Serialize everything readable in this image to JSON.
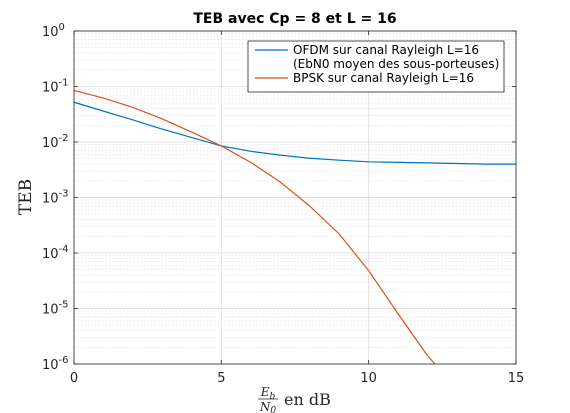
{
  "chart_data": {
    "type": "line",
    "title": "TEB avec Cp = 8 et L = 16",
    "ylabel": "TEB",
    "xlabel": {
      "numerator": "E",
      "numerator_sub": "b",
      "denominator": "N",
      "denominator_sub": "0",
      "suffix": "en dB"
    },
    "xlim": [
      0,
      15
    ],
    "ylim": [
      1e-06,
      1
    ],
    "yscale": "log",
    "x_ticks": [
      0,
      5,
      10,
      15
    ],
    "y_ticks": [
      {
        "value": 1,
        "base": "10",
        "exp": "0"
      },
      {
        "value": 0.1,
        "base": "10",
        "exp": "-1"
      },
      {
        "value": 0.01,
        "base": "10",
        "exp": "-2"
      },
      {
        "value": 0.001,
        "base": "10",
        "exp": "-3"
      },
      {
        "value": 0.0001,
        "base": "10",
        "exp": "-4"
      },
      {
        "value": 1e-05,
        "base": "10",
        "exp": "-5"
      },
      {
        "value": 1e-06,
        "base": "10",
        "exp": "-6"
      }
    ],
    "grid": true,
    "minor_grid": true,
    "legend_position": "top-right",
    "series": [
      {
        "name_lines": [
          "OFDM sur canal Rayleigh L=16",
          "(EbN0 moyen des sous-porteuses)"
        ],
        "color": "#0072BD",
        "x": [
          0,
          1,
          2,
          3,
          4,
          5,
          6,
          7,
          8,
          9,
          10,
          11,
          12,
          13,
          14,
          15
        ],
        "y": [
          0.052,
          0.036,
          0.025,
          0.017,
          0.012,
          0.0085,
          0.0068,
          0.0058,
          0.0051,
          0.0047,
          0.0044,
          0.0043,
          0.0042,
          0.0041,
          0.004,
          0.004
        ]
      },
      {
        "name_lines": [
          "BPSK sur canal Rayleigh L=16"
        ],
        "color": "#D95319",
        "x": [
          0,
          1,
          2,
          3,
          4,
          5,
          6,
          7,
          8,
          9,
          10,
          11,
          12,
          12.25
        ],
        "y": [
          0.085,
          0.062,
          0.042,
          0.026,
          0.015,
          0.0085,
          0.0043,
          0.0019,
          0.0007,
          0.00022,
          4.8e-05,
          8e-06,
          1.4e-06,
          1e-06
        ]
      }
    ]
  }
}
